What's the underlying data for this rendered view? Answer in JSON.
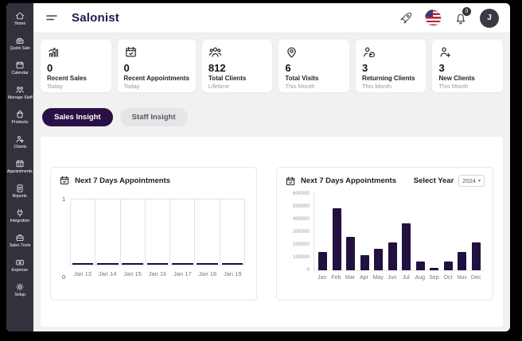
{
  "header": {
    "logo": "Salonist",
    "notification_count": "0",
    "avatar_initial": "J"
  },
  "sidebar": {
    "items": [
      {
        "label": "Home",
        "icon": "home-icon"
      },
      {
        "label": "Quick Sale",
        "icon": "cash-register-icon"
      },
      {
        "label": "Calendar",
        "icon": "calendar-icon"
      },
      {
        "label": "Manage Staff",
        "icon": "staff-icon"
      },
      {
        "label": "Products",
        "icon": "products-bag-icon"
      },
      {
        "label": "Clients",
        "icon": "clients-icon"
      },
      {
        "label": "Appointments",
        "icon": "appointments-icon"
      },
      {
        "label": "Reports",
        "icon": "reports-icon"
      },
      {
        "label": "Integration",
        "icon": "integration-icon"
      },
      {
        "label": "Sales Tools",
        "icon": "sales-tools-icon"
      },
      {
        "label": "Expense",
        "icon": "expense-icon"
      },
      {
        "label": "Setup",
        "icon": "setup-gear-icon"
      }
    ]
  },
  "stats_cards": [
    {
      "icon": "sales-chart-icon",
      "value": "0",
      "label": "Recent Sales",
      "period": "Today"
    },
    {
      "icon": "calendar-check-icon",
      "value": "0",
      "label": "Recent Appointments",
      "period": "Today"
    },
    {
      "icon": "clients-group-icon",
      "value": "812",
      "label": "Total Clients",
      "period": "Lifetime"
    },
    {
      "icon": "visits-pin-icon",
      "value": "6",
      "label": "Total Visits",
      "period": "This Month"
    },
    {
      "icon": "returning-client-icon",
      "value": "3",
      "label": "Returning Clients",
      "period": "This Month"
    },
    {
      "icon": "new-client-icon",
      "value": "3",
      "label": "New Clients",
      "period": "This Month"
    }
  ],
  "tabs": [
    {
      "label": "Sales Insight",
      "active": true
    },
    {
      "label": "Staff Insight",
      "active": false
    }
  ],
  "year_filter": {
    "label": "Select Year",
    "value": "2024"
  },
  "chart_data": [
    {
      "type": "bar",
      "title": "Next 7 Days Appointments",
      "categories": [
        "Jan 13",
        "Jan 14",
        "Jan 15",
        "Jan 16",
        "Jan 17",
        "Jan 18",
        "Jan 19"
      ],
      "values": [
        0,
        0,
        0,
        0,
        0,
        0,
        0
      ],
      "ylim": [
        0,
        1
      ],
      "yticks": [
        0,
        1
      ],
      "bar_color": "#221040",
      "grid": "vertical column separators, boxed plot"
    },
    {
      "type": "bar",
      "title": "Next 7 Days Appointments",
      "categories": [
        "Jan",
        "Feb",
        "Mar",
        "Apr",
        "May",
        "Jun",
        "Jul",
        "Aug",
        "Sep",
        "Oct",
        "Nov",
        "Dec"
      ],
      "values": [
        145000,
        480000,
        260000,
        115000,
        165000,
        215000,
        365000,
        70000,
        20000,
        70000,
        145000,
        215000
      ],
      "ylim": [
        0,
        600000
      ],
      "yticks": [
        0,
        100000,
        200000,
        300000,
        400000,
        500000,
        600000
      ],
      "bar_color": "#221040",
      "grid": "none",
      "legend": "none"
    }
  ],
  "colors": {
    "accent": "#2a1045",
    "bar": "#221040",
    "sidebar": "#32323c",
    "background": "#f1f1f2"
  }
}
